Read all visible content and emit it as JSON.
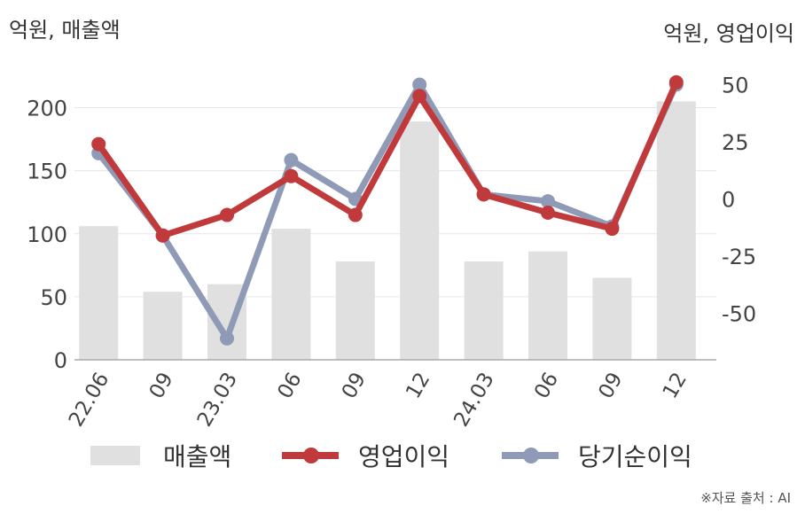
{
  "chart_data": {
    "type": "bar+line",
    "left_axis_label": "억원, 매출액",
    "right_axis_label": "억원, 영업이익",
    "categories": [
      "22.06",
      "09",
      "23.03",
      "06",
      "09",
      "12",
      "24.03",
      "06",
      "09",
      "12"
    ],
    "left_axis": {
      "ticks": [
        0,
        50,
        100,
        150,
        200
      ],
      "range": [
        0,
        230
      ]
    },
    "right_axis": {
      "ticks": [
        -50,
        -25,
        0,
        25,
        50
      ],
      "range": [
        -70,
        55
      ]
    },
    "series": [
      {
        "name": "매출액",
        "type": "bar",
        "axis": "left",
        "color": "#e0e0e0",
        "values": [
          106,
          54,
          60,
          104,
          78,
          189,
          78,
          86,
          65,
          205
        ]
      },
      {
        "name": "당기순이익",
        "type": "line",
        "axis": "right",
        "color": "#8f9ab6",
        "values": [
          20,
          -16,
          -61,
          17,
          0,
          50,
          2,
          -1,
          -12,
          50
        ]
      },
      {
        "name": "영업이익",
        "type": "line",
        "axis": "right",
        "color": "#c0393b",
        "values": [
          24,
          -16,
          -7,
          10,
          -7,
          45,
          2,
          -6,
          -13,
          51
        ]
      }
    ],
    "grid": true,
    "legend_position": "bottom"
  },
  "source": "※자료 출처 : AI"
}
